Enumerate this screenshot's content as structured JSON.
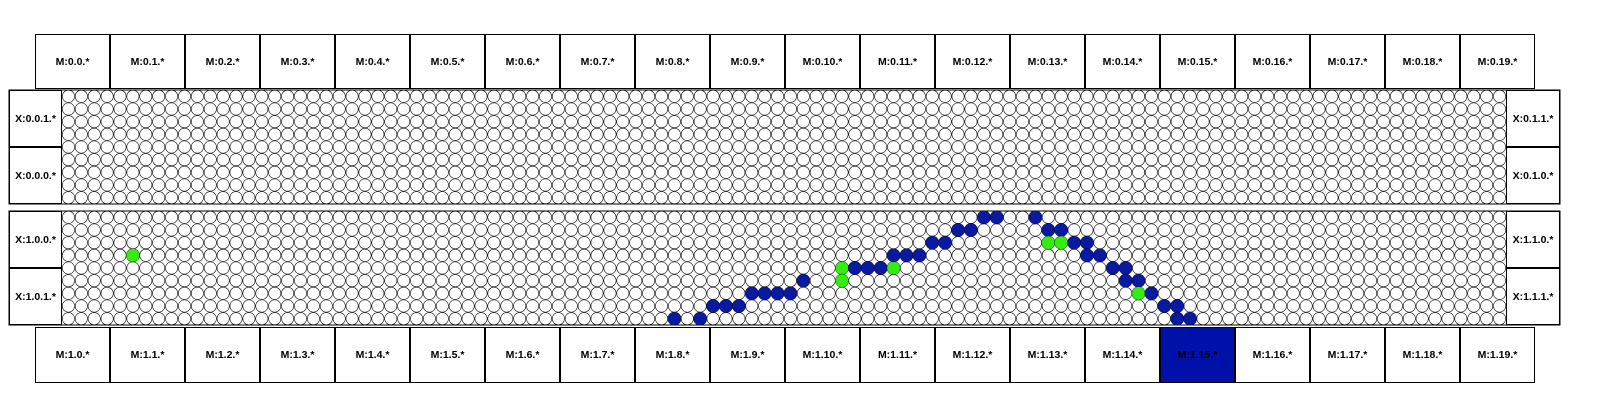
{
  "colors": {
    "empty_fill": "#ffffff",
    "grid_stroke": "#000000",
    "active_blue": "#0a1aa0",
    "active_green": "#33ee11",
    "highlight_module": "#0011aa"
  },
  "top_modules": [
    "M:0.0.*",
    "M:0.1.*",
    "M:0.2.*",
    "M:0.3.*",
    "M:0.4.*",
    "M:0.5.*",
    "M:0.6.*",
    "M:0.7.*",
    "M:0.8.*",
    "M:0.9.*",
    "M:0.10.*",
    "M:0.11.*",
    "M:0.12.*",
    "M:0.13.*",
    "M:0.14.*",
    "M:0.15.*",
    "M:0.16.*",
    "M:0.17.*",
    "M:0.18.*",
    "M:0.19.*"
  ],
  "bottom_modules": [
    "M:1.0.*",
    "M:1.1.*",
    "M:1.2.*",
    "M:1.3.*",
    "M:1.4.*",
    "M:1.5.*",
    "M:1.6.*",
    "M:1.7.*",
    "M:1.8.*",
    "M:1.9.*",
    "M:1.10.*",
    "M:1.11.*",
    "M:1.12.*",
    "M:1.13.*",
    "M:1.14.*",
    "M:1.15.*",
    "M:1.16.*",
    "M:1.17.*",
    "M:1.18.*",
    "M:1.19.*"
  ],
  "highlighted_module": "M:1.15.*",
  "left_labels": [
    "X:0.0.1.*",
    "X:0.0.0.*",
    "X:1.0.0.*",
    "X:1.0.1.*"
  ],
  "right_labels": [
    "X:0.1.1.*",
    "X:0.1.0.*",
    "X:1.1.0.*",
    "X:1.1.1.*"
  ],
  "grid": {
    "columns": 112,
    "rows_per_half": 9
  },
  "active_hits": [
    {
      "half": 1,
      "row": 3,
      "col": 5,
      "color": "green"
    },
    {
      "half": 1,
      "row": 8,
      "col": 47,
      "color": "blue"
    },
    {
      "half": 1,
      "row": 8,
      "col": 49,
      "color": "blue"
    },
    {
      "half": 1,
      "row": 7,
      "col": 50,
      "color": "blue"
    },
    {
      "half": 1,
      "row": 7,
      "col": 51,
      "color": "blue"
    },
    {
      "half": 1,
      "row": 7,
      "col": 52,
      "color": "blue"
    },
    {
      "half": 1,
      "row": 6,
      "col": 53,
      "color": "blue"
    },
    {
      "half": 1,
      "row": 6,
      "col": 54,
      "color": "blue"
    },
    {
      "half": 1,
      "row": 6,
      "col": 55,
      "color": "blue"
    },
    {
      "half": 1,
      "row": 6,
      "col": 56,
      "color": "blue"
    },
    {
      "half": 1,
      "row": 5,
      "col": 57,
      "color": "blue"
    },
    {
      "half": 1,
      "row": 4,
      "col": 60,
      "color": "green"
    },
    {
      "half": 1,
      "row": 5,
      "col": 60,
      "color": "green"
    },
    {
      "half": 1,
      "row": 4,
      "col": 61,
      "color": "blue"
    },
    {
      "half": 1,
      "row": 4,
      "col": 62,
      "color": "blue"
    },
    {
      "half": 1,
      "row": 4,
      "col": 63,
      "color": "blue"
    },
    {
      "half": 1,
      "row": 4,
      "col": 64,
      "color": "green"
    },
    {
      "half": 1,
      "row": 3,
      "col": 64,
      "color": "blue"
    },
    {
      "half": 1,
      "row": 3,
      "col": 65,
      "color": "blue"
    },
    {
      "half": 1,
      "row": 3,
      "col": 66,
      "color": "blue"
    },
    {
      "half": 1,
      "row": 2,
      "col": 67,
      "color": "blue"
    },
    {
      "half": 1,
      "row": 2,
      "col": 68,
      "color": "blue"
    },
    {
      "half": 1,
      "row": 1,
      "col": 69,
      "color": "blue"
    },
    {
      "half": 1,
      "row": 1,
      "col": 70,
      "color": "blue"
    },
    {
      "half": 1,
      "row": 0,
      "col": 71,
      "color": "blue"
    },
    {
      "half": 1,
      "row": 0,
      "col": 72,
      "color": "blue"
    },
    {
      "half": 1,
      "row": 0,
      "col": 75,
      "color": "blue"
    },
    {
      "half": 1,
      "row": 1,
      "col": 76,
      "color": "blue"
    },
    {
      "half": 1,
      "row": 1,
      "col": 77,
      "color": "blue"
    },
    {
      "half": 1,
      "row": 2,
      "col": 76,
      "color": "green"
    },
    {
      "half": 1,
      "row": 2,
      "col": 77,
      "color": "green"
    },
    {
      "half": 1,
      "row": 2,
      "col": 78,
      "color": "blue"
    },
    {
      "half": 1,
      "row": 2,
      "col": 79,
      "color": "blue"
    },
    {
      "half": 1,
      "row": 3,
      "col": 79,
      "color": "blue"
    },
    {
      "half": 1,
      "row": 3,
      "col": 80,
      "color": "blue"
    },
    {
      "half": 1,
      "row": 4,
      "col": 81,
      "color": "blue"
    },
    {
      "half": 1,
      "row": 4,
      "col": 82,
      "color": "blue"
    },
    {
      "half": 1,
      "row": 5,
      "col": 82,
      "color": "blue"
    },
    {
      "half": 1,
      "row": 5,
      "col": 83,
      "color": "blue"
    },
    {
      "half": 1,
      "row": 6,
      "col": 83,
      "color": "green"
    },
    {
      "half": 1,
      "row": 6,
      "col": 84,
      "color": "blue"
    },
    {
      "half": 1,
      "row": 7,
      "col": 85,
      "color": "blue"
    },
    {
      "half": 1,
      "row": 7,
      "col": 86,
      "color": "blue"
    },
    {
      "half": 1,
      "row": 8,
      "col": 86,
      "color": "blue"
    },
    {
      "half": 1,
      "row": 8,
      "col": 87,
      "color": "blue"
    }
  ]
}
